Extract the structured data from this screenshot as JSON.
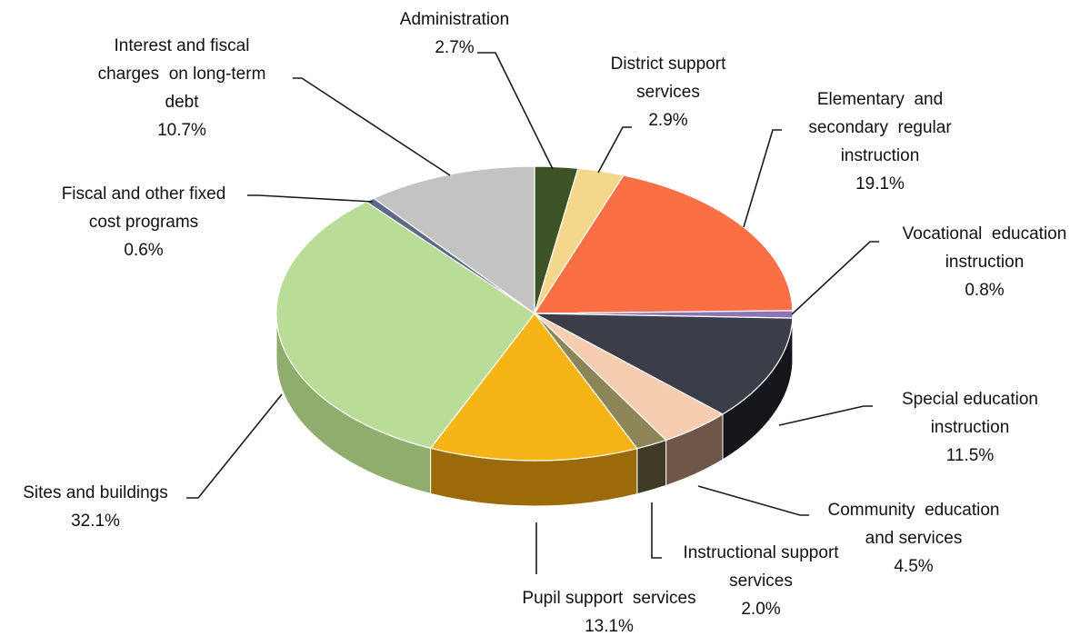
{
  "chart_data": {
    "type": "pie",
    "title": "",
    "slices": [
      {
        "label": "Administration",
        "pct_text": "2.7%",
        "value": 2.7,
        "color": "#3d5326",
        "side": "#2a3a1a"
      },
      {
        "label": "District support services",
        "pct_text": "2.9%",
        "value": 2.9,
        "color": "#f5d78b",
        "side": "#c9ad60"
      },
      {
        "label": "Elementary and secondary regular instruction",
        "pct_text": "19.1%",
        "value": 19.1,
        "color": "#fb6f45",
        "side": "#c54e2b"
      },
      {
        "label": "Vocational education instruction",
        "pct_text": "0.8%",
        "value": 0.8,
        "color": "#8c74b8",
        "side": "#65528b"
      },
      {
        "label": "Special education instruction",
        "pct_text": "11.5%",
        "value": 11.5,
        "color": "#3b3d49",
        "side": "#15161b"
      },
      {
        "label": "Community education and services",
        "pct_text": "4.5%",
        "value": 4.5,
        "color": "#f7cdb0",
        "side": "#6e5648"
      },
      {
        "label": "Instructional support services",
        "pct_text": "2.0%",
        "value": 2.0,
        "color": "#8c8558",
        "side": "#3e3a25"
      },
      {
        "label": "Pupil support services",
        "pct_text": "13.1%",
        "value": 13.1,
        "color": "#f6b417",
        "side": "#9a6b08"
      },
      {
        "label": "Sites and buildings",
        "pct_text": "32.1%",
        "value": 32.1,
        "color": "#b9dd96",
        "side": "#8fae6d"
      },
      {
        "label": "Fiscal and other fixed cost programs",
        "pct_text": "0.6%",
        "value": 0.6,
        "color": "#5b6a86",
        "side": "#3e4a60"
      },
      {
        "label": "Interest and fiscal charges on long-term debt",
        "pct_text": "10.7%",
        "value": 10.7,
        "color": "#c3c3c3",
        "side": "#9a9a9a"
      }
    ],
    "three_d": true,
    "legend": "none"
  },
  "labels": [
    {
      "lines": [
        "Administration",
        "2.7%"
      ]
    },
    {
      "lines": [
        "District support",
        "services",
        "2.9%"
      ]
    },
    {
      "lines": [
        "Elementary  and",
        "secondary  regular",
        "instruction",
        "19.1%"
      ]
    },
    {
      "lines": [
        "Vocational  education",
        "instruction",
        "0.8%"
      ]
    },
    {
      "lines": [
        "Special education",
        "instruction",
        "11.5%"
      ]
    },
    {
      "lines": [
        "Community  education",
        "and services",
        "4.5%"
      ]
    },
    {
      "lines": [
        "Instructional support",
        "services",
        "2.0%"
      ]
    },
    {
      "lines": [
        "Pupil support  services",
        "13.1%"
      ]
    },
    {
      "lines": [
        "Sites and buildings",
        "32.1%"
      ]
    },
    {
      "lines": [
        "Fiscal and other fixed",
        "cost programs",
        "0.6%"
      ]
    },
    {
      "lines": [
        "Interest and fiscal",
        "charges  on long-term",
        "debt",
        "10.7%"
      ]
    }
  ]
}
